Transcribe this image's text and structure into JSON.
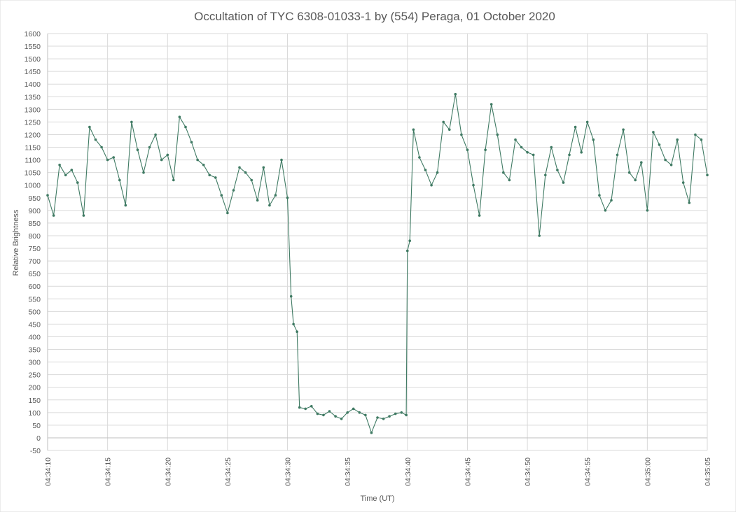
{
  "chart_data": {
    "type": "line",
    "title": "Occultation of TYC 6308-01033-1 by (554) Peraga, 01 October 2020",
    "xlabel": "Time (UT)",
    "ylabel": "Relative Brightness",
    "ylim": [
      -50,
      1600
    ],
    "yticks": [
      -50,
      0,
      50,
      100,
      150,
      200,
      250,
      300,
      350,
      400,
      450,
      500,
      550,
      600,
      650,
      700,
      750,
      800,
      850,
      900,
      950,
      1000,
      1050,
      1100,
      1150,
      1200,
      1250,
      1300,
      1350,
      1400,
      1450,
      1500,
      1550,
      1600
    ],
    "xlim": [
      "04:34:10",
      "04:35:05"
    ],
    "xticks": [
      "04:34:10",
      "04:34:15",
      "04:34:20",
      "04:34:25",
      "04:34:30",
      "04:34:35",
      "04:34:40",
      "04:34:45",
      "04:34:50",
      "04:34:55",
      "04:35:00",
      "04:35:05"
    ],
    "grid": true,
    "legend": "none",
    "series_color": "#3f7a63",
    "series": [
      {
        "x": [
          "04:34:10.0",
          "04:34:10.5",
          "04:34:11.0",
          "04:34:11.5",
          "04:34:12.0",
          "04:34:12.5",
          "04:34:13.0",
          "04:34:13.5",
          "04:34:14.0",
          "04:34:14.5",
          "04:34:15.0",
          "04:34:15.5",
          "04:34:16.0",
          "04:34:16.5",
          "04:34:17.0",
          "04:34:17.5",
          "04:34:18.0",
          "04:34:18.5",
          "04:34:19.0",
          "04:34:19.5",
          "04:34:20.0",
          "04:34:20.5",
          "04:34:21.0",
          "04:34:21.5",
          "04:34:22.0",
          "04:34:22.5",
          "04:34:23.0",
          "04:34:23.5",
          "04:34:24.0",
          "04:34:24.5",
          "04:34:25.0",
          "04:34:25.5",
          "04:34:26.0",
          "04:34:26.5",
          "04:34:27.0",
          "04:34:27.5",
          "04:34:28.0",
          "04:34:28.5",
          "04:34:29.0",
          "04:34:29.5",
          "04:34:30.0",
          "04:34:30.3",
          "04:34:30.5",
          "04:34:30.8",
          "04:34:31.0",
          "04:34:31.5",
          "04:34:32.0",
          "04:34:32.5",
          "04:34:33.0",
          "04:34:33.5",
          "04:34:34.0",
          "04:34:34.5",
          "04:34:35.0",
          "04:34:35.5",
          "04:34:36.0",
          "04:34:36.5",
          "04:34:37.0",
          "04:34:37.5",
          "04:34:38.0",
          "04:34:38.5",
          "04:34:39.0",
          "04:34:39.5",
          "04:34:39.9",
          "04:34:40.0",
          "04:34:40.2",
          "04:34:40.5",
          "04:34:41.0",
          "04:34:41.5",
          "04:34:42.0",
          "04:34:42.5",
          "04:34:43.0",
          "04:34:43.5",
          "04:34:44.0",
          "04:34:44.5",
          "04:34:45.0",
          "04:34:45.5",
          "04:34:46.0",
          "04:34:46.5",
          "04:34:47.0",
          "04:34:47.5",
          "04:34:48.0",
          "04:34:48.5",
          "04:34:49.0",
          "04:34:49.5",
          "04:34:50.0",
          "04:34:50.5",
          "04:34:51.0",
          "04:34:51.5",
          "04:34:52.0",
          "04:34:52.5",
          "04:34:53.0",
          "04:34:53.5",
          "04:34:54.0",
          "04:34:54.5",
          "04:34:55.0",
          "04:34:55.5",
          "04:34:56.0",
          "04:34:56.5",
          "04:34:57.0",
          "04:34:57.5",
          "04:34:58.0",
          "04:34:58.5",
          "04:34:59.0",
          "04:34:59.5",
          "04:35:00.0",
          "04:35:00.5",
          "04:35:01.0",
          "04:35:01.5",
          "04:35:02.0",
          "04:35:02.5",
          "04:35:03.0",
          "04:35:03.5",
          "04:35:04.0",
          "04:35:04.5",
          "04:35:05.0"
        ],
        "y": [
          960,
          880,
          1080,
          1040,
          1060,
          1010,
          880,
          1230,
          1180,
          1150,
          1100,
          1110,
          1020,
          920,
          1250,
          1140,
          1050,
          1150,
          1200,
          1100,
          1120,
          1020,
          1270,
          1230,
          1170,
          1100,
          1080,
          1040,
          1030,
          960,
          890,
          980,
          1070,
          1050,
          1020,
          940,
          1070,
          920,
          960,
          1100,
          950,
          560,
          450,
          420,
          120,
          115,
          125,
          95,
          90,
          105,
          85,
          75,
          100,
          115,
          100,
          90,
          20,
          80,
          75,
          85,
          95,
          100,
          90,
          740,
          780,
          1220,
          1110,
          1060,
          1000,
          1050,
          1250,
          1220,
          1360,
          1200,
          1140,
          1000,
          880,
          1140,
          1320,
          1200,
          1050,
          1020,
          1180,
          1150,
          1130,
          1120,
          800,
          1040,
          1150,
          1060,
          1010,
          1120,
          1230,
          1130,
          1250,
          1180,
          960,
          900,
          940,
          1120,
          1220,
          1050,
          1020,
          1090,
          900,
          1210,
          1160,
          1100,
          1080,
          1180,
          1010,
          930,
          1200,
          1180,
          1040
        ]
      }
    ]
  }
}
